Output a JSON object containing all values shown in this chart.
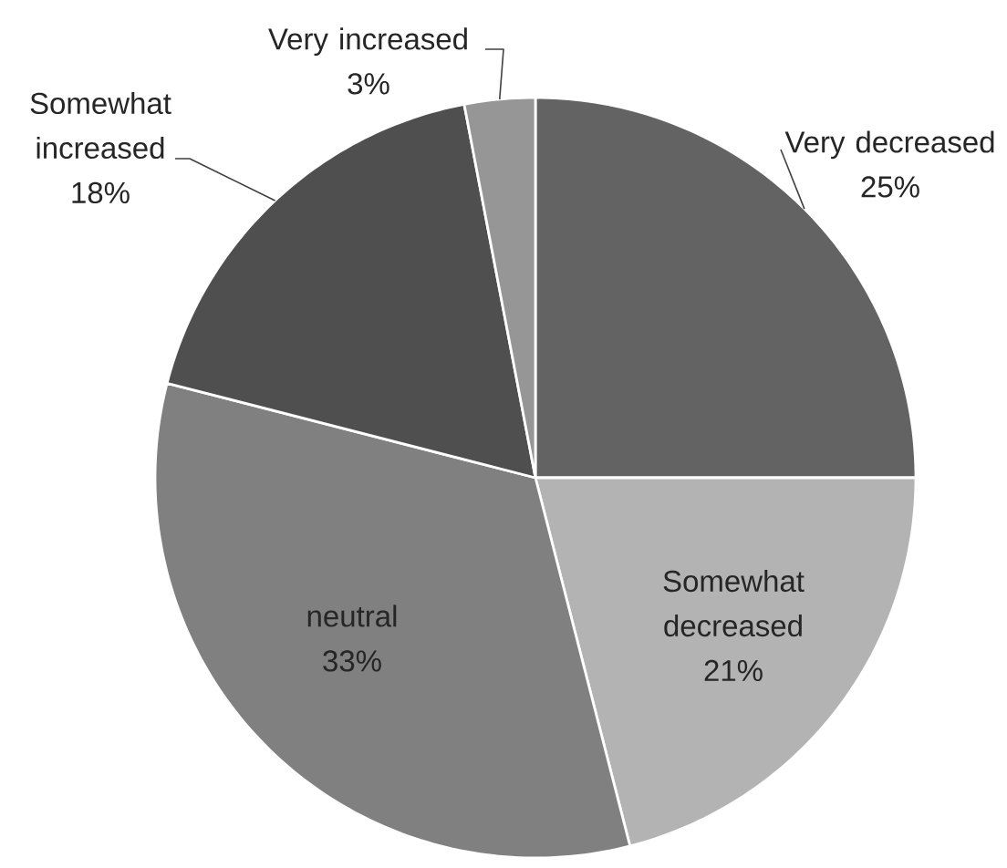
{
  "chart_data": {
    "type": "pie",
    "categories": [
      "Very decreased",
      "Somewhat decreased",
      "neutral",
      "Somewhat increased",
      "Very increased"
    ],
    "values": [
      25,
      21,
      33,
      18,
      3
    ],
    "value_labels": [
      "25%",
      "21%",
      "33%",
      "18%",
      "3%"
    ],
    "colors": [
      "#636363",
      "#b3b3b3",
      "#808080",
      "#4f4f4f",
      "#969696"
    ]
  }
}
